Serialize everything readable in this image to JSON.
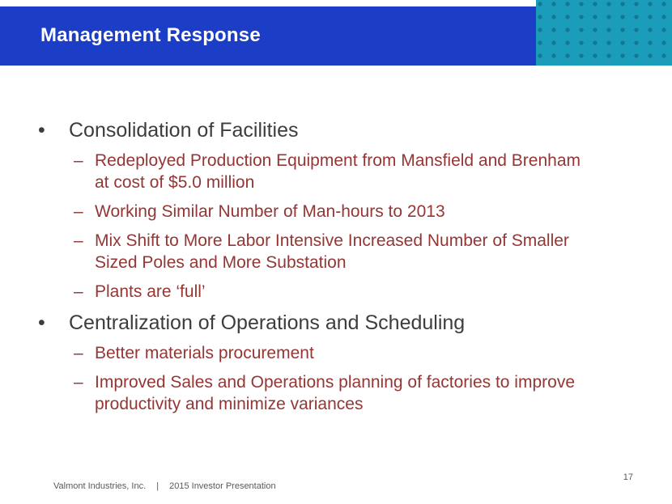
{
  "header": {
    "title": "Management Response"
  },
  "content": {
    "bullet_char": "•",
    "dash_char": "–",
    "sections": [
      {
        "heading": "Consolidation of Facilities",
        "items": [
          {
            "lines": [
              "Redeployed Production Equipment from Mansfield and Brenham",
              "at cost of $5.0 million"
            ]
          },
          {
            "lines": [
              "Working Similar Number of Man-hours to 2013"
            ]
          },
          {
            "lines": [
              "Mix Shift to More Labor Intensive Increased Number of Smaller",
              "Sized Poles and More Substation"
            ]
          },
          {
            "lines": [
              "Plants are ‘full’"
            ]
          }
        ]
      },
      {
        "heading": "Centralization of Operations and Scheduling",
        "items": [
          {
            "lines": [
              "Better materials procurement"
            ]
          },
          {
            "lines": [
              "Improved Sales and Operations planning of factories to improve",
              "productivity and minimize variances"
            ]
          }
        ]
      }
    ]
  },
  "footer": {
    "company": "Valmont Industries, Inc.",
    "separator": "|",
    "presentation": "2015 Investor Presentation",
    "page_number": "17"
  },
  "colors": {
    "header_blue": "#1c3ec6",
    "accent_teal": "#1b9cba",
    "sub_bullet_red": "#943634",
    "heading_text": "#3d3d3d",
    "footer_text": "#595959"
  }
}
